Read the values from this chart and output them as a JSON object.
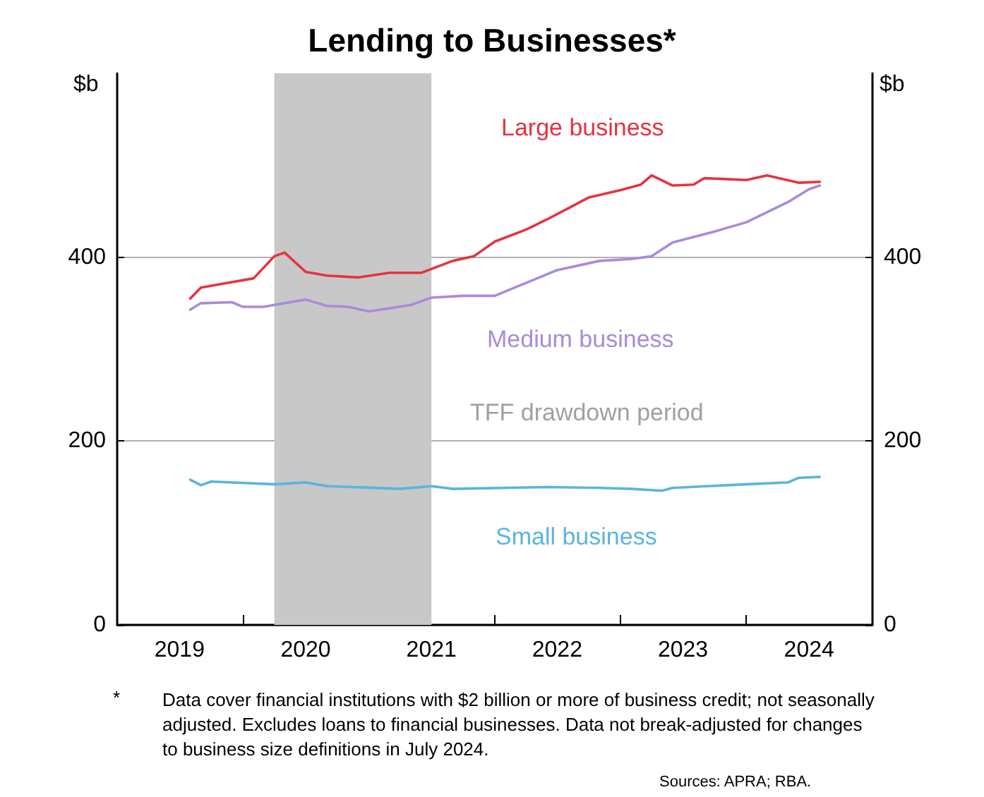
{
  "chart_data": {
    "type": "line",
    "title": "Lending to Businesses*",
    "ylabel": "$b",
    "y2label": "$b",
    "annotations": [
      "*",
      "Data cover financial institutions with $2 billion or more of business credit; not seasonally adjusted. Excludes loans to financial businesses. Data not break-adjusted for changes to business size definitions in July 2024.",
      "Sources: APRA; RBA."
    ],
    "xlim": [
      "2019-01-01",
      "2025-01-01"
    ],
    "xticks": [
      {
        "value": "2019-07-01",
        "label": "2019"
      },
      {
        "value": "2020-01-01",
        "label": null
      },
      {
        "value": "2020-07-01",
        "label": "2020"
      },
      {
        "value": "2021-01-01",
        "label": null
      },
      {
        "value": "2021-07-01",
        "label": "2021"
      },
      {
        "value": "2022-01-01",
        "label": null
      },
      {
        "value": "2022-07-01",
        "label": "2022"
      },
      {
        "value": "2023-01-01",
        "label": null
      },
      {
        "value": "2023-07-01",
        "label": "2023"
      },
      {
        "value": "2024-01-01",
        "label": null
      },
      {
        "value": "2024-07-01",
        "label": "2024"
      }
    ],
    "ylim": [
      0,
      600
    ],
    "yticks": [
      0,
      200,
      400
    ],
    "y2lim": [
      0,
      600
    ],
    "y2ticks": [
      0,
      200,
      400
    ],
    "grid": "y",
    "legend": false,
    "marker": "none",
    "line_style": "solid",
    "bands": [
      {
        "axis": "x",
        "from": "2020-04-01",
        "to": "2021-07-01",
        "label": "TFF drawdown period",
        "color": "#c8c8c8"
      }
    ],
    "series": [
      {
        "name": "Large business",
        "color": "#e4343f",
        "x": [
          "2019-08",
          "2019-09",
          "2019-11",
          "2020-02",
          "2020-04",
          "2020-05",
          "2020-07",
          "2020-09",
          "2020-12",
          "2021-03",
          "2021-06",
          "2021-09",
          "2021-11",
          "2022-01",
          "2022-04",
          "2022-06",
          "2022-08",
          "2022-10",
          "2023-01",
          "2023-03",
          "2023-04",
          "2023-06",
          "2023-08",
          "2023-09",
          "2024-01",
          "2024-03",
          "2024-06",
          "2024-08"
        ],
        "values": [
          355,
          367,
          371,
          377,
          401,
          405,
          384,
          380,
          378,
          383,
          383,
          396,
          401,
          417,
          430,
          441,
          453,
          465,
          473,
          479,
          489,
          478,
          479,
          486,
          484,
          489,
          481,
          482
        ]
      },
      {
        "name": "Medium business",
        "color": "#a98bd9",
        "x": [
          "2019-08",
          "2019-09",
          "2019-12",
          "2020-01",
          "2020-03",
          "2020-07",
          "2020-09",
          "2020-11",
          "2021-01",
          "2021-05",
          "2021-07",
          "2021-10",
          "2022-01",
          "2022-07",
          "2022-11",
          "2023-02",
          "2023-04",
          "2023-06",
          "2023-10",
          "2024-01",
          "2024-05",
          "2024-07",
          "2024-08"
        ],
        "values": [
          343,
          350,
          351,
          346,
          346,
          354,
          347,
          346,
          341,
          348,
          356,
          358,
          358,
          386,
          396,
          398,
          401,
          416,
          428,
          438,
          460,
          474,
          478
        ]
      },
      {
        "name": "Small business",
        "color": "#5db4dc",
        "x": [
          "2019-08",
          "2019-09",
          "2019-10",
          "2020-04",
          "2020-07",
          "2020-09",
          "2021-04",
          "2021-07",
          "2021-09",
          "2022-06",
          "2022-11",
          "2023-02",
          "2023-05",
          "2023-06",
          "2024-01",
          "2024-05",
          "2024-06",
          "2024-08"
        ],
        "values": [
          158,
          152,
          156,
          153,
          155,
          151,
          148,
          151,
          148,
          150,
          149,
          148,
          146,
          149,
          153,
          155,
          160,
          161
        ]
      }
    ]
  }
}
